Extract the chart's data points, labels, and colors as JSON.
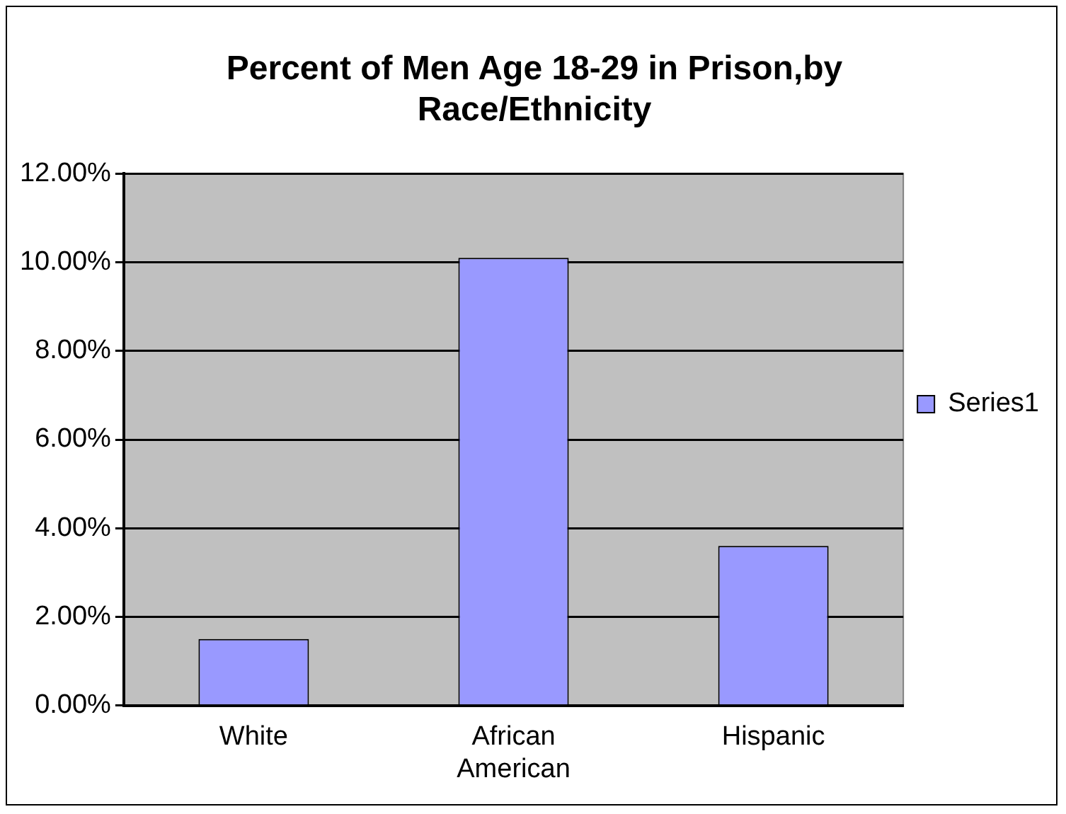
{
  "chart_data": {
    "type": "bar",
    "title": "Percent of Men Age 18-29 in Prison,by Race/Ethnicity",
    "categories": [
      "White",
      "African American",
      "Hispanic"
    ],
    "series": [
      {
        "name": "Series1",
        "color": "#9999ff",
        "values": [
          1.5,
          10.1,
          3.6
        ]
      }
    ],
    "ylim": [
      0,
      12
    ],
    "yticks": [
      {
        "value": 0,
        "label": "0.00%"
      },
      {
        "value": 2,
        "label": "2.00%"
      },
      {
        "value": 4,
        "label": "4.00%"
      },
      {
        "value": 6,
        "label": "6.00%"
      },
      {
        "value": 8,
        "label": "8.00%"
      },
      {
        "value": 10,
        "label": "10.00%"
      },
      {
        "value": 12,
        "label": "12.00%"
      }
    ],
    "grid": "y",
    "legend": "right"
  }
}
